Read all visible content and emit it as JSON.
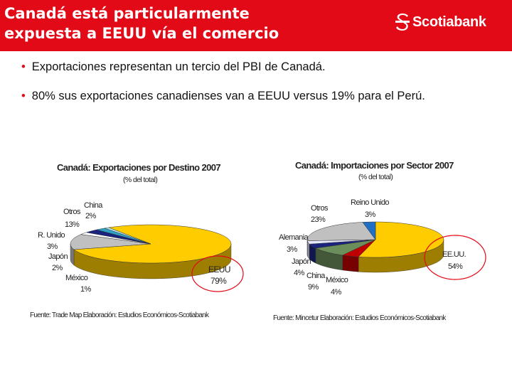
{
  "slide": {
    "title_line1": "Canadá está particularmente",
    "title_line2": "expuesta a EEUU vía el comercio",
    "brand": "Scotiabank",
    "brand_color": "#e20a17"
  },
  "bullets": [
    "Exportaciones representan un tercio del PBI de Canadá.",
    "80% sus exportaciones canadienses van a EEUU versus 19% para el Perú."
  ],
  "chart_data": [
    {
      "type": "pie",
      "title": "Canadá: Exportaciones por Destino 2007",
      "subtitle": "(% del total)",
      "source": "Fuente: Trade Map   Elaboración: Estudios Económicos-Scotiabank",
      "slices": [
        {
          "label": "EEUU",
          "value": 79,
          "display": "79%",
          "color": "#ffcc00"
        },
        {
          "label": "Otros",
          "value": 13,
          "display": "13%",
          "color": "#c0c0c0"
        },
        {
          "label": "China",
          "value": 2,
          "display": "2%",
          "color": "#ffffff"
        },
        {
          "label": "R. Unido",
          "value": 3,
          "display": "3%",
          "color": "#1a237e"
        },
        {
          "label": "Japón",
          "value": 2,
          "display": "2%",
          "color": "#2ea3c7"
        },
        {
          "label": "México",
          "value": 1,
          "display": "1%",
          "color": "#b5e3ef"
        }
      ]
    },
    {
      "type": "pie",
      "title": "Canadá: Importaciones por Sector 2007",
      "subtitle": "(% del total)",
      "source": "Fuente: Mincetur   Elaboración: Estudios Económicos-Scotiabank",
      "slices": [
        {
          "label": "EE.UU.",
          "value": 54,
          "display": "54%",
          "color": "#ffcc00"
        },
        {
          "label": "México",
          "value": 4,
          "display": "4%",
          "color": "#c00000"
        },
        {
          "label": "China",
          "value": 9,
          "display": "9%",
          "color": "#6b8e5a"
        },
        {
          "label": "Japón",
          "value": 4,
          "display": "4%",
          "color": "#1a237e"
        },
        {
          "label": "Alemania",
          "value": 3,
          "display": "3%",
          "color": "#e8e8ff"
        },
        {
          "label": "Otros",
          "value": 23,
          "display": "23%",
          "color": "#c0c0c0"
        },
        {
          "label": "Reino Unido",
          "value": 3,
          "display": "3%",
          "color": "#1f6fc4"
        }
      ]
    }
  ]
}
